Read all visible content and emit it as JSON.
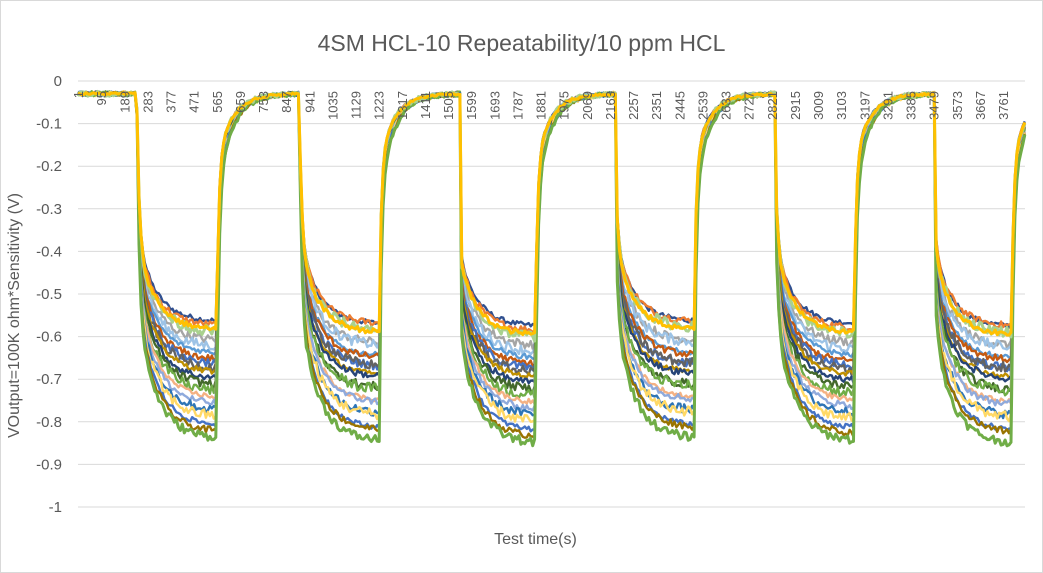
{
  "chart_data": {
    "type": "line",
    "title": "4SM HCL-10 Repeatability/10 ppm HCL",
    "xlabel": "Test time(s)",
    "ylabel": "VOutput=100K ohm*Sensitivity (V)",
    "ylim": [
      -1,
      0
    ],
    "yticks": [
      "0",
      "-0.1",
      "-0.2",
      "-0.3",
      "-0.4",
      "-0.5",
      "-0.6",
      "-0.7",
      "-0.8",
      "-0.9",
      "-1"
    ],
    "xlim": [
      1,
      3850
    ],
    "xticks": [
      "1",
      "95",
      "189",
      "283",
      "377",
      "471",
      "565",
      "659",
      "753",
      "847",
      "941",
      "1035",
      "1129",
      "1223",
      "1317",
      "1411",
      "1505",
      "1599",
      "1693",
      "1787",
      "1881",
      "1975",
      "2069",
      "2163",
      "2257",
      "2351",
      "2445",
      "2539",
      "2633",
      "2727",
      "2821",
      "2915",
      "3009",
      "3103",
      "3197",
      "3291",
      "3385",
      "3479",
      "3573",
      "3667",
      "3761"
    ],
    "grid": "horizontal",
    "legend": "none",
    "baseline": -0.03,
    "exposures": [
      {
        "on": 240,
        "off": 565
      },
      {
        "on": 900,
        "off": 1225
      },
      {
        "on": 1535,
        "off": 1860
      },
      {
        "on": 2180,
        "off": 2505
      },
      {
        "on": 2830,
        "off": 3155
      },
      {
        "on": 3470,
        "off": 3795
      }
    ],
    "series": [
      {
        "color": "#2f4f8f",
        "plateau": -0.565
      },
      {
        "color": "#ed7d31",
        "plateau": -0.575
      },
      {
        "color": "#a5a5a5",
        "plateau": -0.61
      },
      {
        "color": "#9dc3e6",
        "plateau": -0.625
      },
      {
        "color": "#5b9bd5",
        "plateau": -0.64
      },
      {
        "color": "#c55a11",
        "plateau": -0.655
      },
      {
        "color": "#4472c4",
        "plateau": -0.665
      },
      {
        "color": "#636363",
        "plateau": -0.675
      },
      {
        "color": "#bf9000",
        "plateau": -0.685
      },
      {
        "color": "#264478",
        "plateau": -0.7
      },
      {
        "color": "#43682b",
        "plateau": -0.715
      },
      {
        "color": "#70ad47",
        "plateau": -0.73
      },
      {
        "color": "#f4b183",
        "plateau": -0.745
      },
      {
        "color": "#8faadc",
        "plateau": -0.76
      },
      {
        "color": "#2e75b6",
        "plateau": -0.775
      },
      {
        "color": "#ffd966",
        "plateau": -0.79
      },
      {
        "color": "#4472c4",
        "plateau": -0.81
      },
      {
        "color": "#997300",
        "plateau": -0.825
      },
      {
        "color": "#70ad47",
        "plateau": -0.84
      },
      {
        "color": "#a9d18e",
        "plateau": -0.59
      },
      {
        "color": "#ffc000",
        "plateau": -0.585
      }
    ]
  }
}
